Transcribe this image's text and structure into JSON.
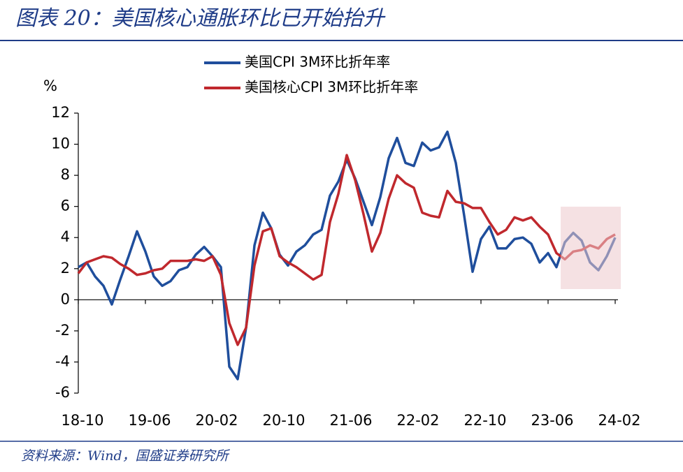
{
  "chart_data": {
    "type": "line",
    "title": "图表 20：美国核心通胀环比已开始抬升",
    "y_label": "%",
    "source": "资料来源：Wind，国盛证券研究所",
    "categories": [
      "18-10",
      null,
      null,
      null,
      null,
      null,
      null,
      null,
      "19-06",
      null,
      null,
      null,
      null,
      null,
      null,
      null,
      "20-02",
      null,
      null,
      null,
      null,
      null,
      null,
      null,
      "20-10",
      null,
      null,
      null,
      null,
      null,
      null,
      null,
      "21-06",
      null,
      null,
      null,
      null,
      null,
      null,
      null,
      "22-02",
      null,
      null,
      null,
      null,
      null,
      null,
      null,
      "22-10",
      null,
      null,
      null,
      null,
      null,
      null,
      null,
      "23-06",
      null,
      null,
      null,
      null,
      null,
      null,
      null,
      "24-02"
    ],
    "series": [
      {
        "name": "美国CPI 3M环比折年率",
        "color": "#1f4e9c",
        "values": [
          2.1,
          2.4,
          1.5,
          0.9,
          -0.3,
          1.3,
          2.8,
          4.4,
          3.1,
          1.5,
          0.9,
          1.2,
          1.9,
          2.1,
          2.9,
          3.4,
          2.8,
          2.1,
          -4.3,
          -5.1,
          -1.8,
          3.5,
          5.6,
          4.6,
          2.9,
          2.2,
          3.1,
          3.5,
          4.2,
          4.5,
          6.7,
          7.6,
          9.0,
          7.8,
          6.3,
          4.8,
          6.6,
          9.1,
          10.4,
          8.8,
          8.6,
          10.1,
          9.6,
          9.8,
          10.8,
          8.8,
          5.4,
          1.8,
          3.9,
          4.7,
          3.3,
          3.3,
          3.9,
          4.0,
          3.6,
          2.4,
          3.0,
          2.1,
          3.7,
          4.3,
          3.8,
          2.4,
          1.9,
          2.8,
          4.0
        ]
      },
      {
        "name": "美国核心CPI 3M环比折年率",
        "color": "#c0282d",
        "values": [
          1.7,
          2.4,
          2.6,
          2.8,
          2.7,
          2.3,
          2.0,
          1.6,
          1.7,
          1.9,
          2.0,
          2.5,
          2.5,
          2.5,
          2.6,
          2.5,
          2.8,
          1.6,
          -1.5,
          -2.9,
          -1.8,
          2.2,
          4.4,
          4.6,
          2.8,
          2.4,
          2.1,
          1.7,
          1.3,
          1.6,
          5.0,
          6.8,
          9.3,
          7.7,
          5.5,
          3.1,
          4.3,
          6.5,
          8.0,
          7.5,
          7.2,
          5.6,
          5.4,
          5.3,
          7.0,
          6.3,
          6.2,
          5.9,
          5.9,
          5.0,
          4.2,
          4.5,
          5.3,
          5.1,
          5.3,
          4.7,
          4.2,
          3.0,
          2.6,
          3.1,
          3.2,
          3.5,
          3.3,
          3.9,
          4.2
        ]
      }
    ],
    "ylim": [
      -6,
      12
    ],
    "yticks": [
      -6,
      -4,
      -2,
      0,
      2,
      4,
      6,
      8,
      10,
      12
    ],
    "legend": "top"
  }
}
